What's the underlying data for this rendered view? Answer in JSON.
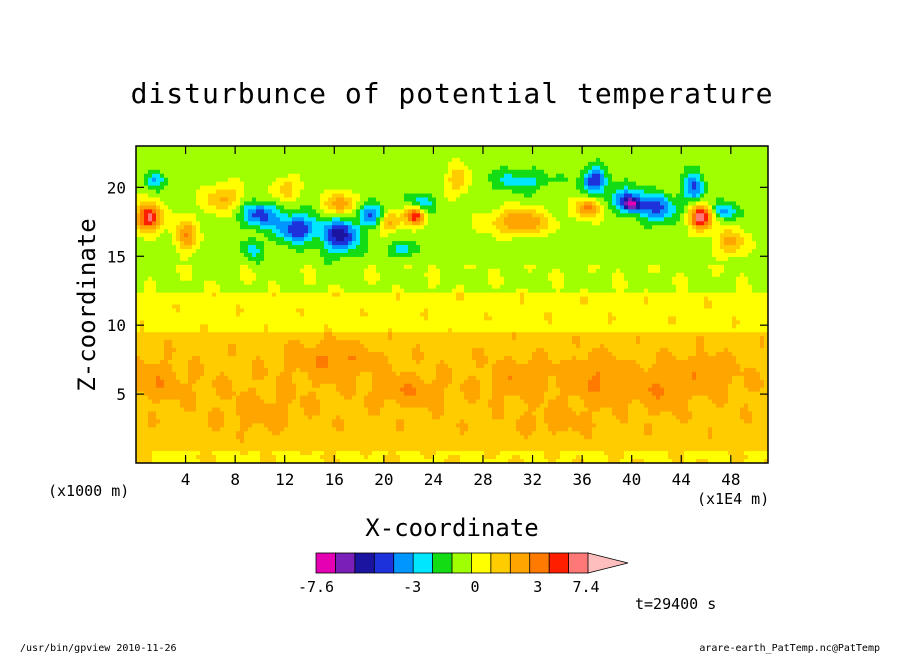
{
  "chart_data": {
    "type": "heatmap",
    "title": "disturbunce of potential temperature",
    "xlabel": "X-coordinate",
    "ylabel": "Z-coordinate",
    "x_unit_left": "(x1000 m)",
    "x_unit_right": "(x1E4 m)",
    "xlim": [
      0,
      51
    ],
    "ylim": [
      0,
      23
    ],
    "x_ticks": [
      "4",
      "8",
      "12",
      "16",
      "20",
      "24",
      "28",
      "32",
      "36",
      "40",
      "44",
      "48"
    ],
    "y_ticks": [
      "5",
      "10",
      "15",
      "20"
    ],
    "time_label": "t=29400 s",
    "colorbar": {
      "levels": [
        -7.6,
        -6.6,
        -5.6,
        -4.6,
        -3.6,
        -2.6,
        -1.6,
        -0.6,
        0.4,
        1.4,
        2.4,
        3.4,
        4.4,
        5.4,
        7.4
      ],
      "tick_labels": [
        "-7.6",
        "-3",
        "0",
        "3",
        "7.4"
      ],
      "colors": [
        "#e600b4",
        "#7a1fb8",
        "#1a14a0",
        "#1e32dc",
        "#0096ff",
        "#00e6ff",
        "#14dc14",
        "#a0ff00",
        "#ffff00",
        "#ffcc00",
        "#ffa500",
        "#ff7a00",
        "#ff1e00",
        "#ff7878",
        "#ffbebe"
      ]
    },
    "regions": [
      {
        "z_range": [
          0,
          1.5
        ],
        "value": 1.2,
        "note": "near-surface yellow with green patches"
      },
      {
        "z_range": [
          1.5,
          9
        ],
        "value": 2.5,
        "note": "orange band, maxima ~3.5 near x=16, 22, 31, 37, 42, 46"
      },
      {
        "z_range": [
          9,
          12.5
        ],
        "value": 1.0,
        "note": "yellow layer"
      },
      {
        "z_range": [
          12.5,
          15
        ],
        "value": 0.0,
        "note": "green layer"
      },
      {
        "z_range": [
          15,
          20
        ],
        "value": -1.0,
        "note": "wave structures: minima ~-5 near x=10-16 and x=37-45; maxima ~+6 near x=1, 17, 22, 45"
      },
      {
        "z_range": [
          20,
          23
        ],
        "value": 0.0,
        "note": "green with cyan/orange patches"
      }
    ]
  },
  "footer": {
    "left": "/usr/bin/gpview   2010-11-26",
    "right": "arare-earth_PatTemp.nc@PatTemp"
  }
}
